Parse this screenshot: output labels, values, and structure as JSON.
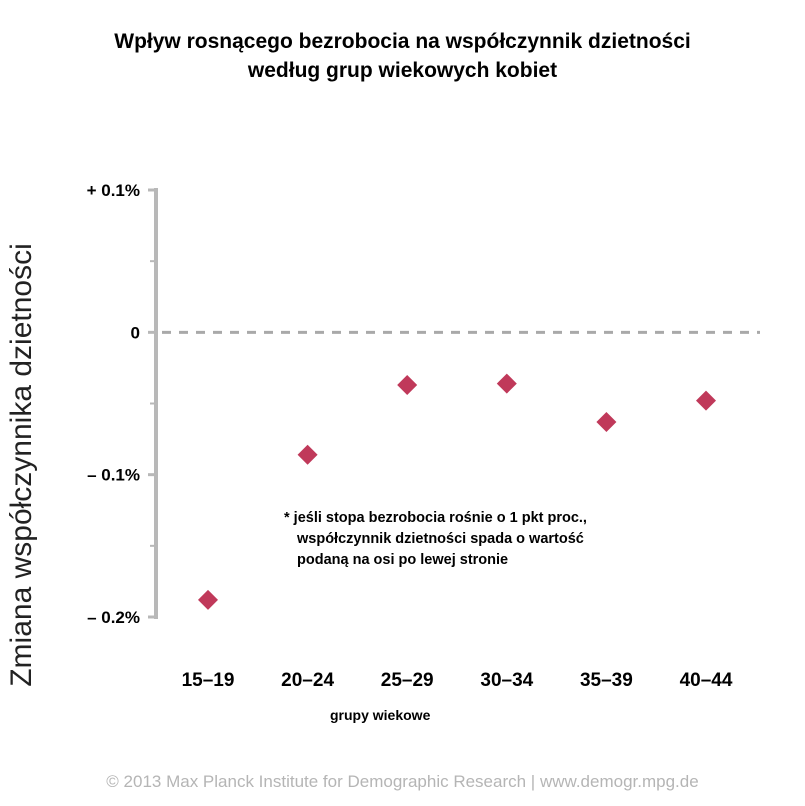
{
  "title": {
    "line1": "Wpływ rosnącego bezrobocia na współczynnik dzietności",
    "line2": "według grup wiekowych kobiet"
  },
  "chart_data": {
    "type": "scatter",
    "title": "Wpływ rosnącego bezrobocia na współczynnik dzietności według grup wiekowych kobiet",
    "ylabel": "Zmiana współczynnika dzietności",
    "xlabel": "grupy wiekowe",
    "categories": [
      "15–19",
      "20–24",
      "25–29",
      "30–34",
      "35–39",
      "40–44"
    ],
    "values": [
      -0.188,
      -0.086,
      -0.037,
      -0.036,
      -0.063,
      -0.048
    ],
    "ylim": [
      -0.2,
      0.1
    ],
    "y_ticks": [
      {
        "value": 0.1,
        "label": "+ 0.1%"
      },
      {
        "value": 0.0,
        "label": "0"
      },
      {
        "value": -0.1,
        "label": "– 0.1%"
      },
      {
        "value": -0.2,
        "label": "– 0.2%"
      }
    ],
    "zero_line": "dashed",
    "marker": "diamond",
    "marker_color": "#c0395a",
    "axis_color": "#b8b8b8",
    "grid": false
  },
  "note": {
    "line1": "* jeśli stopa bezrobocia rośnie o 1 pkt proc.,",
    "line2": "współczynnik dzietności spada o wartość",
    "line3": "podaną na osi po lewej stronie"
  },
  "footer": "© 2013 Max Planck Institute for Demographic Research | www.demogr.mpg.de"
}
